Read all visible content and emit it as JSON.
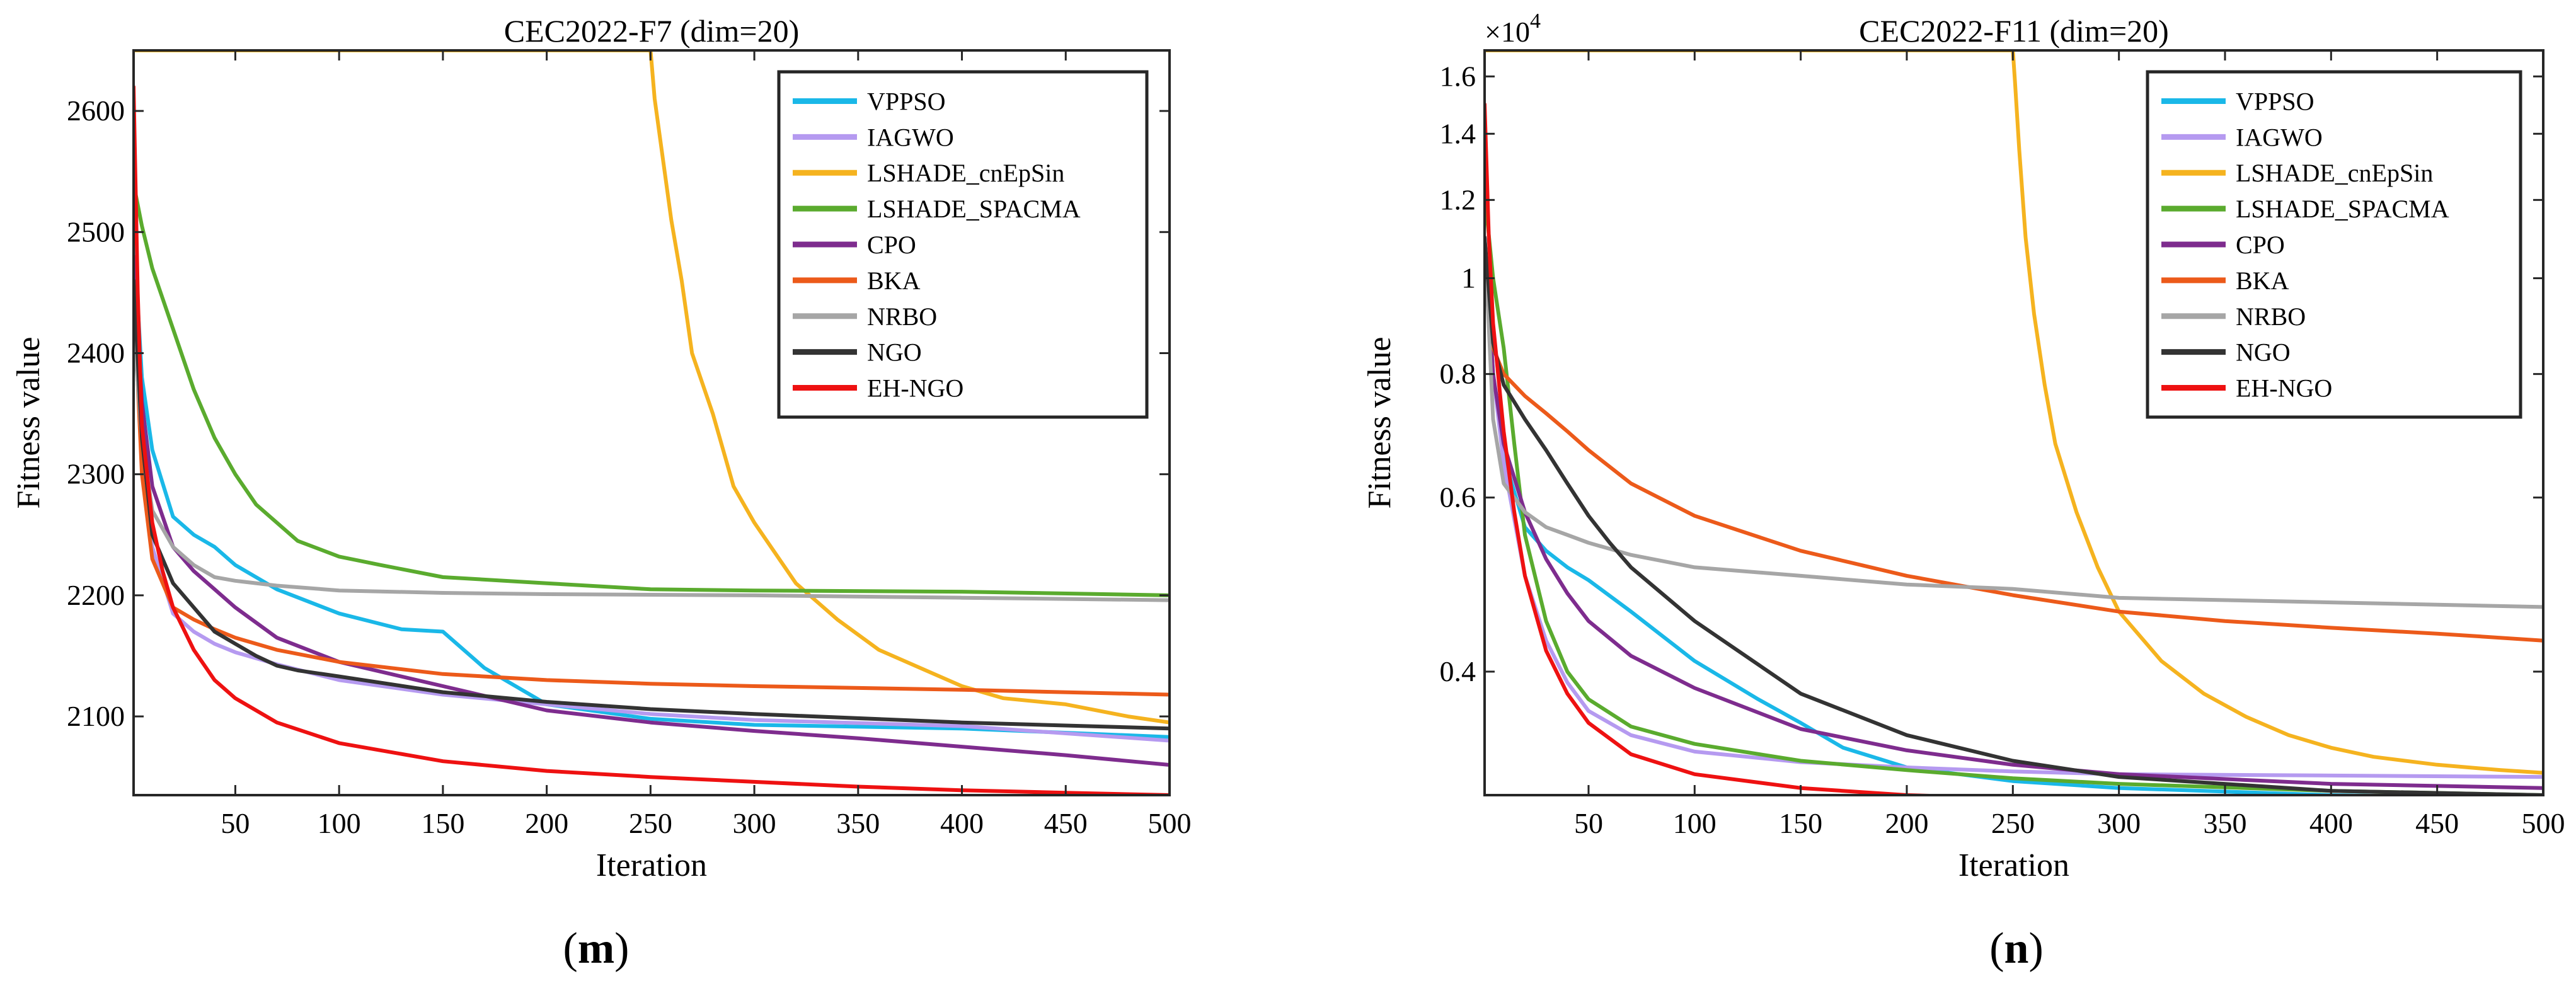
{
  "colors": {
    "VPPSO": "#1ab8e8",
    "IAGWO": "#b59af0",
    "LSHADE_cnEpSin": "#f5b31f",
    "LSHADE_SPACMA": "#5aab2e",
    "CPO": "#7e2c8e",
    "BKA": "#ec5a1a",
    "NRBO": "#a6a6a6",
    "NGO": "#333333",
    "EH-NGO": "#ee1111"
  },
  "chart_data": [
    {
      "type": "line",
      "panel_label": "m",
      "title": "CEC2022-F7 (dim=20)",
      "xlabel": "Iteration",
      "ylabel": "Fitness value",
      "xlim": [
        1,
        500
      ],
      "ylim": [
        2035,
        2650
      ],
      "xticks": [
        50,
        100,
        150,
        200,
        250,
        300,
        350,
        400,
        450,
        500
      ],
      "yticks": [
        2100,
        2200,
        2300,
        2400,
        2500,
        2600
      ],
      "grid": false,
      "legend_position": "top-right",
      "series": [
        {
          "name": "VPPSO",
          "x": [
            1,
            5,
            10,
            20,
            30,
            40,
            50,
            70,
            100,
            130,
            150,
            170,
            200,
            250,
            300,
            400,
            500
          ],
          "y": [
            2500,
            2380,
            2320,
            2265,
            2250,
            2240,
            2225,
            2205,
            2185,
            2172,
            2170,
            2140,
            2110,
            2098,
            2093,
            2090,
            2083
          ]
        },
        {
          "name": "IAGWO",
          "x": [
            1,
            5,
            10,
            20,
            30,
            40,
            50,
            70,
            100,
            150,
            200,
            250,
            300,
            400,
            500
          ],
          "y": [
            2450,
            2310,
            2240,
            2185,
            2170,
            2160,
            2153,
            2143,
            2130,
            2118,
            2110,
            2102,
            2097,
            2092,
            2080
          ]
        },
        {
          "name": "LSHADE_cnEpSin",
          "x": [
            1,
            250,
            252,
            256,
            260,
            265,
            270,
            280,
            290,
            300,
            310,
            320,
            340,
            360,
            380,
            400,
            420,
            450,
            480,
            500
          ],
          "y": [
            2650,
            2650,
            2610,
            2560,
            2510,
            2460,
            2400,
            2350,
            2290,
            2260,
            2235,
            2210,
            2180,
            2155,
            2140,
            2125,
            2115,
            2110,
            2100,
            2095
          ]
        },
        {
          "name": "LSHADE_SPACMA",
          "x": [
            1,
            5,
            10,
            20,
            30,
            40,
            50,
            60,
            80,
            100,
            120,
            150,
            200,
            250,
            300,
            400,
            500
          ],
          "y": [
            2540,
            2505,
            2470,
            2420,
            2370,
            2330,
            2300,
            2275,
            2245,
            2232,
            2225,
            2215,
            2210,
            2205,
            2204,
            2203,
            2200
          ]
        },
        {
          "name": "CPO",
          "x": [
            1,
            5,
            10,
            20,
            30,
            40,
            50,
            70,
            100,
            150,
            200,
            250,
            300,
            350,
            400,
            450,
            500
          ],
          "y": [
            2480,
            2360,
            2290,
            2240,
            2220,
            2205,
            2190,
            2165,
            2145,
            2125,
            2105,
            2095,
            2088,
            2082,
            2075,
            2068,
            2060
          ]
        },
        {
          "name": "BKA",
          "x": [
            1,
            5,
            10,
            20,
            30,
            40,
            50,
            70,
            100,
            150,
            200,
            250,
            300,
            400,
            500
          ],
          "y": [
            2450,
            2300,
            2230,
            2190,
            2180,
            2172,
            2165,
            2155,
            2145,
            2135,
            2130,
            2127,
            2125,
            2122,
            2118
          ]
        },
        {
          "name": "NRBO",
          "x": [
            1,
            5,
            10,
            20,
            30,
            40,
            50,
            70,
            100,
            150,
            200,
            300,
            400,
            500
          ],
          "y": [
            2420,
            2330,
            2270,
            2240,
            2225,
            2215,
            2212,
            2208,
            2204,
            2202,
            2201,
            2200,
            2198,
            2196
          ]
        },
        {
          "name": "NGO",
          "x": [
            1,
            5,
            10,
            20,
            30,
            40,
            50,
            60,
            70,
            80,
            100,
            150,
            200,
            250,
            300,
            400,
            500
          ],
          "y": [
            2460,
            2330,
            2250,
            2210,
            2190,
            2170,
            2160,
            2150,
            2142,
            2138,
            2133,
            2120,
            2112,
            2106,
            2102,
            2095,
            2090
          ]
        },
        {
          "name": "EH-NGO",
          "x": [
            1,
            3,
            5,
            10,
            15,
            20,
            30,
            40,
            50,
            70,
            100,
            150,
            200,
            250,
            300,
            350,
            400,
            450,
            500
          ],
          "y": [
            2620,
            2450,
            2340,
            2260,
            2220,
            2190,
            2155,
            2130,
            2115,
            2095,
            2078,
            2063,
            2055,
            2050,
            2046,
            2042,
            2039,
            2037,
            2035
          ]
        }
      ]
    },
    {
      "type": "line",
      "panel_label": "n",
      "title": "CEC2022-F11 (dim=20)",
      "xlabel": "Iteration",
      "ylabel": "Fitness value",
      "y_scale": "log",
      "y_exponent_label": "×10^4",
      "xlim": [
        1,
        500
      ],
      "ylim": [
        0.3,
        1.7
      ],
      "xticks": [
        50,
        100,
        150,
        200,
        250,
        300,
        350,
        400,
        450,
        500
      ],
      "yticks": [
        0.4,
        0.6,
        0.8,
        1,
        1.2,
        1.4,
        1.6
      ],
      "grid": false,
      "legend_position": "top-right",
      "series": [
        {
          "name": "VPPSO",
          "x": [
            1,
            5,
            10,
            20,
            30,
            40,
            50,
            70,
            100,
            130,
            150,
            170,
            200,
            250,
            300,
            400,
            500
          ],
          "y": [
            1.1,
            0.8,
            0.66,
            0.56,
            0.53,
            0.51,
            0.495,
            0.46,
            0.41,
            0.375,
            0.355,
            0.335,
            0.32,
            0.31,
            0.305,
            0.3,
            0.298
          ]
        },
        {
          "name": "IAGWO",
          "x": [
            1,
            5,
            10,
            20,
            30,
            40,
            50,
            70,
            100,
            150,
            200,
            250,
            300,
            400,
            500
          ],
          "y": [
            1.1,
            0.8,
            0.65,
            0.5,
            0.43,
            0.39,
            0.365,
            0.345,
            0.332,
            0.324,
            0.32,
            0.317,
            0.315,
            0.314,
            0.313
          ]
        },
        {
          "name": "LSHADE_cnEpSin",
          "x": [
            1,
            250,
            251,
            253,
            256,
            260,
            265,
            270,
            280,
            290,
            300,
            320,
            340,
            360,
            380,
            400,
            420,
            450,
            480,
            500
          ],
          "y": [
            1.7,
            1.7,
            1.58,
            1.35,
            1.1,
            0.92,
            0.78,
            0.68,
            0.58,
            0.51,
            0.46,
            0.41,
            0.38,
            0.36,
            0.345,
            0.335,
            0.328,
            0.322,
            0.318,
            0.316
          ]
        },
        {
          "name": "LSHADE_SPACMA",
          "x": [
            1,
            5,
            10,
            15,
            20,
            30,
            40,
            50,
            70,
            100,
            150,
            200,
            250,
            300,
            400,
            500
          ],
          "y": [
            1.22,
            1.0,
            0.85,
            0.68,
            0.55,
            0.45,
            0.4,
            0.375,
            0.352,
            0.338,
            0.325,
            0.318,
            0.312,
            0.308,
            0.303,
            0.3
          ]
        },
        {
          "name": "CPO",
          "x": [
            1,
            5,
            10,
            20,
            30,
            40,
            50,
            70,
            100,
            150,
            200,
            250,
            300,
            400,
            500
          ],
          "y": [
            1.1,
            0.8,
            0.68,
            0.58,
            0.52,
            0.48,
            0.45,
            0.415,
            0.385,
            0.35,
            0.333,
            0.322,
            0.315,
            0.308,
            0.305
          ]
        },
        {
          "name": "BKA",
          "x": [
            1,
            5,
            10,
            20,
            30,
            40,
            50,
            70,
            100,
            150,
            200,
            250,
            300,
            350,
            400,
            450,
            500
          ],
          "y": [
            1.0,
            0.85,
            0.8,
            0.76,
            0.73,
            0.7,
            0.67,
            0.62,
            0.575,
            0.53,
            0.5,
            0.478,
            0.46,
            0.45,
            0.443,
            0.437,
            0.43
          ]
        },
        {
          "name": "NRBO",
          "x": [
            1,
            5,
            10,
            20,
            30,
            40,
            50,
            70,
            100,
            150,
            200,
            250,
            300,
            400,
            500
          ],
          "y": [
            1.1,
            0.72,
            0.62,
            0.58,
            0.56,
            0.55,
            0.54,
            0.525,
            0.51,
            0.5,
            0.49,
            0.485,
            0.475,
            0.47,
            0.465
          ]
        },
        {
          "name": "NGO",
          "x": [
            1,
            5,
            10,
            20,
            30,
            40,
            50,
            60,
            70,
            100,
            150,
            200,
            250,
            300,
            400,
            500
          ],
          "y": [
            1.1,
            0.86,
            0.78,
            0.72,
            0.67,
            0.62,
            0.575,
            0.54,
            0.51,
            0.45,
            0.38,
            0.345,
            0.325,
            0.313,
            0.303,
            0.3
          ]
        },
        {
          "name": "EH-NGO",
          "x": [
            1,
            3,
            5,
            10,
            15,
            20,
            30,
            40,
            50,
            70,
            100,
            150,
            200,
            250,
            300,
            400,
            500
          ],
          "y": [
            1.5,
            1.1,
            0.9,
            0.7,
            0.58,
            0.5,
            0.42,
            0.38,
            0.355,
            0.33,
            0.315,
            0.305,
            0.3,
            0.298,
            0.297,
            0.296,
            0.295
          ]
        }
      ]
    }
  ]
}
